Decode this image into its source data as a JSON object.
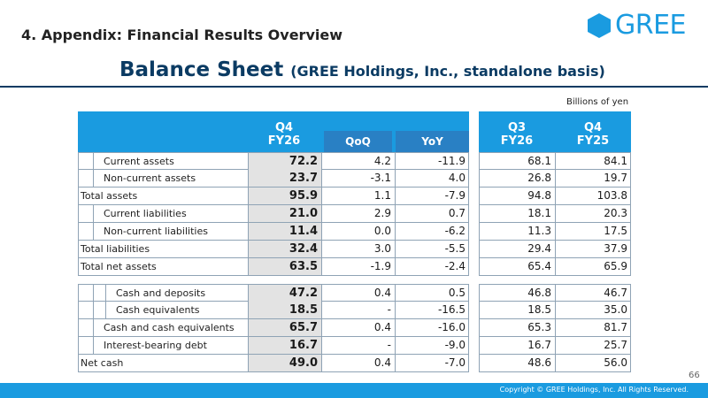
{
  "header": {
    "section_title": "4. Appendix: Financial Results Overview",
    "logo_text": "GREE",
    "title": "Balance Sheet",
    "subtitle": "(GREE Holdings, Inc., standalone basis)",
    "unit": "Billions of yen"
  },
  "table": {
    "col_q4": [
      "Q4",
      "FY26"
    ],
    "col_qoq": "QoQ",
    "col_yoy": "YoY",
    "col_q3": [
      "Q3",
      "FY26"
    ],
    "col_q4fy25": [
      "Q4",
      "FY25"
    ],
    "rows_top": [
      {
        "label": "Current assets",
        "q4": "72.2",
        "qoq": "4.2",
        "yoy": "-11.9",
        "q3": "68.1",
        "q4fy25": "84.1"
      },
      {
        "label": "Non-current assets",
        "q4": "23.7",
        "qoq": "-3.1",
        "yoy": "4.0",
        "q3": "26.8",
        "q4fy25": "19.7"
      },
      {
        "label": "Total assets",
        "q4": "95.9",
        "qoq": "1.1",
        "yoy": "-7.9",
        "q3": "94.8",
        "q4fy25": "103.8"
      },
      {
        "label": "Current liabilities",
        "q4": "21.0",
        "qoq": "2.9",
        "yoy": "0.7",
        "q3": "18.1",
        "q4fy25": "20.3"
      },
      {
        "label": "Non-current liabilities",
        "q4": "11.4",
        "qoq": "0.0",
        "yoy": "-6.2",
        "q3": "11.3",
        "q4fy25": "17.5"
      },
      {
        "label": "Total liabilities",
        "q4": "32.4",
        "qoq": "3.0",
        "yoy": "-5.5",
        "q3": "29.4",
        "q4fy25": "37.9"
      },
      {
        "label": "Total net assets",
        "q4": "63.5",
        "qoq": "-1.9",
        "yoy": "-2.4",
        "q3": "65.4",
        "q4fy25": "65.9"
      }
    ],
    "rows_bottom": [
      {
        "label": "Cash and deposits",
        "q4": "47.2",
        "qoq": "0.4",
        "yoy": "0.5",
        "q3": "46.8",
        "q4fy25": "46.7"
      },
      {
        "label": "Cash equivalents",
        "q4": "18.5",
        "qoq": "-",
        "yoy": "-16.5",
        "q3": "18.5",
        "q4fy25": "35.0"
      },
      {
        "label": "Cash and cash equivalents",
        "q4": "65.7",
        "qoq": "0.4",
        "yoy": "-16.0",
        "q3": "65.3",
        "q4fy25": "81.7"
      },
      {
        "label": "Interest-bearing debt",
        "q4": "16.7",
        "qoq": "-",
        "yoy": "-9.0",
        "q3": "16.7",
        "q4fy25": "25.7"
      },
      {
        "label": "Net cash",
        "q4": "49.0",
        "qoq": "0.4",
        "yoy": "-7.0",
        "q3": "48.6",
        "q4fy25": "56.0"
      }
    ]
  },
  "footer": {
    "page_number": "66",
    "copyright": "Copyright © GREE Holdings, Inc. All Rights Reserved."
  },
  "colors": {
    "brand": "#1a9be0",
    "header_dark": "#2980c4",
    "title": "#0b3b63"
  }
}
